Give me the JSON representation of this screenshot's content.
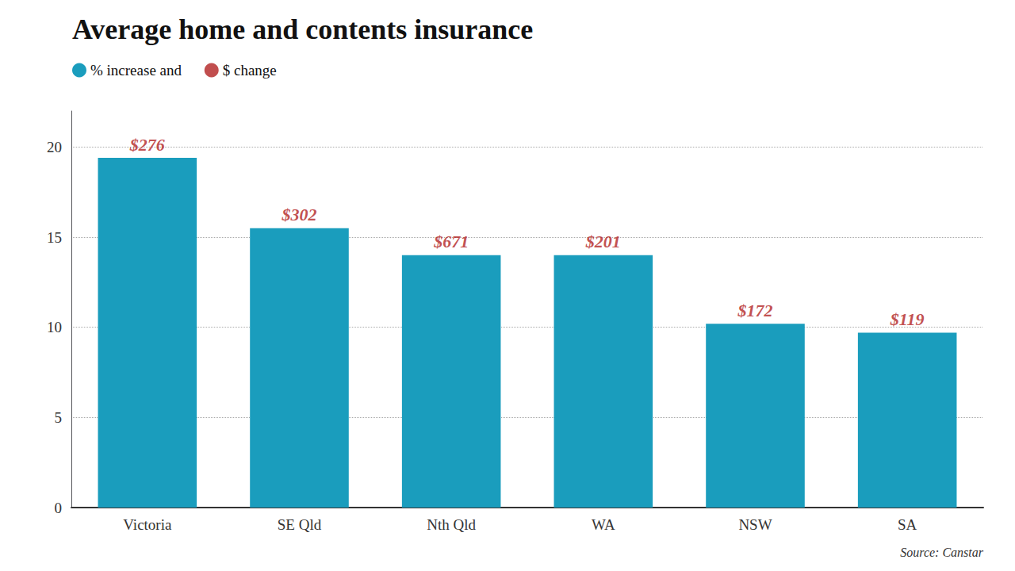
{
  "chart_data": {
    "type": "bar",
    "title": "Average home and contents insurance",
    "categories": [
      "Victoria",
      "SE Qld",
      "Nth Qld",
      "WA",
      "NSW",
      "SA"
    ],
    "series": [
      {
        "name": "% increase and ",
        "color": "#1a9dbd",
        "values": [
          19.4,
          15.5,
          14.0,
          14.0,
          10.2,
          9.7
        ]
      }
    ],
    "annotations": {
      "name": "$ change",
      "color": "#b22222",
      "labels": [
        "$276",
        "$302",
        "$671",
        "$201",
        "$172",
        "$119"
      ]
    },
    "source": "Source: Canstar",
    "ylim": [
      0,
      22
    ],
    "yticks": [
      0,
      5,
      10,
      15,
      20
    ],
    "grid": true,
    "legend": "top left"
  }
}
